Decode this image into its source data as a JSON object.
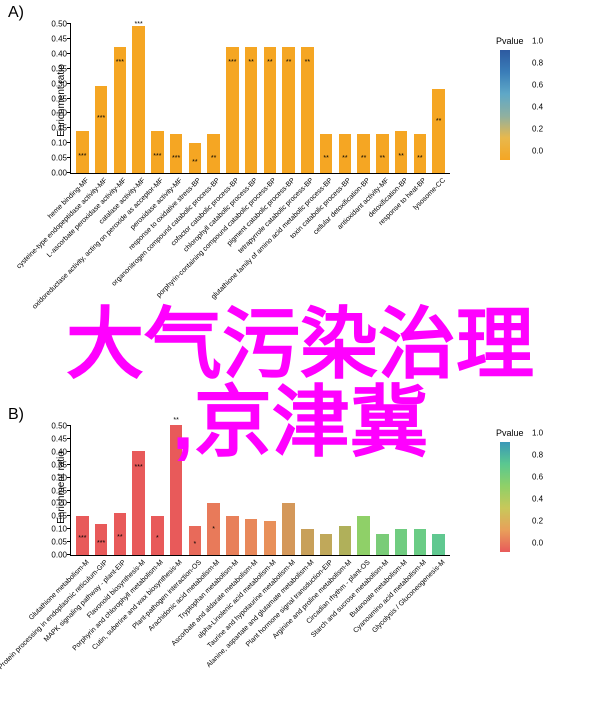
{
  "overlay": {
    "line1": "大气污染治理",
    "line2": ",京津冀",
    "color": "#ff00ff",
    "fontsize": 72
  },
  "panelA": {
    "label": "A)",
    "ylabel": "Enrichment ratio",
    "ylim": [
      0,
      0.5
    ],
    "ytick_step": 0.05,
    "bar_color": "#f5a623",
    "colorbar": {
      "title": "Pvalue",
      "gradient": [
        "#f5a623",
        "#e8b84c",
        "#8fb0a0",
        "#5fa8c7",
        "#3a7db8",
        "#2d5aa0"
      ],
      "ticks": [
        0.0,
        0.2,
        0.4,
        0.6,
        0.8,
        1.0
      ]
    },
    "categories": [
      "heme binding-MF",
      "cysteine-type endopeptidase activity-MF",
      "L-ascorbate peroxidase activity-MF",
      "catalase activity-MF",
      "oxidoreductase activity, acting on peroxide as acceptor-MF",
      "peroxidase activity-MF",
      "response to oxidative stress-BP",
      "organonitrogen compound catabolic process-BP",
      "cofactor catabolic process-BP",
      "chlorophyll catabolic process-BP",
      "porphyrin-containing compound catabolic process-BP",
      "pigment catabolic process-BP",
      "tetrapyrrole catabolic process-BP",
      "glutathione family of amino acid metabolic process-BP",
      "toxin catabolic process-BP",
      "cellular detoxification-BP",
      "antioxidant activity-MF",
      "detoxification-BP",
      "response to heat-BP",
      "lysosome-CC"
    ],
    "values": [
      0.14,
      0.29,
      0.42,
      0.49,
      0.14,
      0.13,
      0.1,
      0.13,
      0.42,
      0.42,
      0.42,
      0.42,
      0.42,
      0.13,
      0.13,
      0.13,
      0.13,
      0.14,
      0.13,
      0.28
    ],
    "sig": [
      "***",
      "***",
      "***",
      "***",
      "***",
      "***",
      "**",
      "**",
      "***",
      "**",
      "**",
      "**",
      "**",
      "**",
      "**",
      "**",
      "**",
      "**",
      "**",
      "**"
    ]
  },
  "panelB": {
    "label": "B)",
    "ylabel": "Enrichment ratio",
    "ylim": [
      0,
      0.5
    ],
    "ytick_step": 0.05,
    "colorbar": {
      "title": "Pvalue",
      "gradient": [
        "#e85a5a",
        "#e8a05a",
        "#c8c85a",
        "#8fd068",
        "#5ac890",
        "#3a98b8"
      ],
      "ticks": [
        0.0,
        0.2,
        0.4,
        0.6,
        0.8,
        1.0
      ]
    },
    "categories": [
      "Glutathione metabolism-M",
      "Protein processing in endoplasmic reticulum-GIP",
      "MAPK signaling pathway - plant-EIP",
      "Flavonoid biosynthesis-M",
      "Porphyrin and chlorophyll metabolism-M",
      "Cutin, suberine and wax biosynthesis-M",
      "Plant-pathogen interaction-OS",
      "Arachidonic acid metabolism-M",
      "Tryptophan metabolism-M",
      "Ascorbate and aldarate metabolism-M",
      "alpha-Linolenic acid metabolism-M",
      "Taurine and hypotaurine metabolism-M",
      "Alanine, aspartate and glutamate metabolism-M",
      "Plant hormone signal transduction-EIP",
      "Arginine and proline metabolism-M",
      "Circadian rhythm - plant-OS",
      "Starch and sucrose metabolism-M",
      "Butanoate metabolism-M",
      "Cyanoamino acid metabolism-M",
      "Glycolysis / Gluconeogenesis-M"
    ],
    "values": [
      0.15,
      0.12,
      0.16,
      0.4,
      0.15,
      0.5,
      0.11,
      0.2,
      0.15,
      0.14,
      0.13,
      0.2,
      0.1,
      0.08,
      0.11,
      0.15,
      0.08,
      0.1,
      0.1,
      0.08
    ],
    "colors": [
      "#e85a5a",
      "#e85a5a",
      "#e85a5a",
      "#e85a5a",
      "#e85a5a",
      "#e85a5a",
      "#e86a5a",
      "#e87a5a",
      "#e8805a",
      "#e8885a",
      "#e8905a",
      "#d4985a",
      "#c8a05a",
      "#c0a85a",
      "#b0b05a",
      "#8fd068",
      "#7acc78",
      "#70cc80",
      "#6acc85",
      "#60c890"
    ],
    "sig": [
      "***",
      "***",
      "**",
      "***",
      "*",
      "**",
      "*",
      "*",
      "",
      "",
      "",
      "",
      "",
      "",
      "",
      "",
      "",
      "",
      "",
      ""
    ]
  }
}
